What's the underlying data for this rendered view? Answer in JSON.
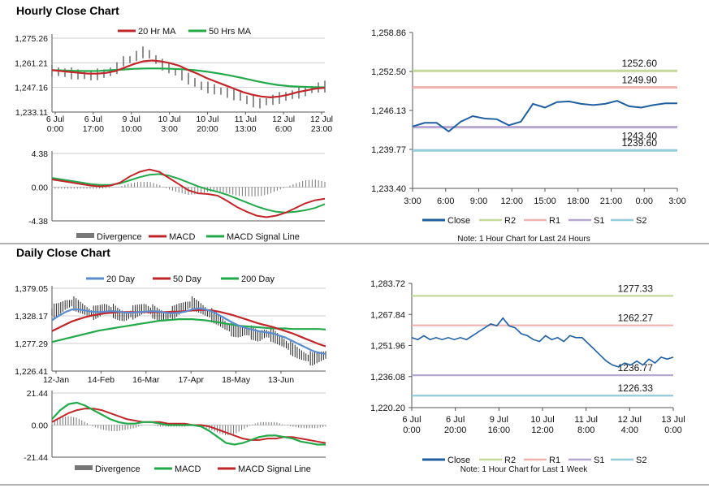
{
  "sections": {
    "hourly_title": "Hourly Close Chart",
    "daily_title": "Daily Close Chart"
  },
  "colors": {
    "close": "#1f5fa0",
    "ma20": "#c0262a",
    "ma50": "#23a84a",
    "day20": "#5b8ccf",
    "day50": "#c0262a",
    "day200": "#23a84a",
    "r2": "#c5d99a",
    "r1": "#efb3b0",
    "s1": "#b6a7d0",
    "s2": "#93cdd9",
    "divergence": "#777777",
    "price_bars": "#222222"
  },
  "chart_data": [
    {
      "id": "hourly_price",
      "type": "line",
      "title": "Hourly Close Chart",
      "legend": [
        "20 Hr MA",
        "50 Hrs MA"
      ],
      "yticks": [
        "1,275.26",
        "1,261.21",
        "1,247.16",
        "1,233.11"
      ],
      "ylim": [
        1233.11,
        1275.26
      ],
      "xticks": [
        [
          "6 Jul",
          "0:00"
        ],
        [
          "6 Jul",
          "17:00"
        ],
        [
          "9 Jul",
          "10:00"
        ],
        [
          "10 Jul",
          "3:00"
        ],
        [
          "10 Jul",
          "20:00"
        ],
        [
          "11 Jul",
          "13:00"
        ],
        [
          "12 Jul",
          "6:00"
        ],
        [
          "12 Jul",
          "23:00"
        ]
      ],
      "series": [
        {
          "name": "Close",
          "values": [
            1256.5,
            1256,
            1255.5,
            1255,
            1254.5,
            1254,
            1254,
            1254.5,
            1255,
            1256,
            1258,
            1262,
            1263,
            1265,
            1267,
            1266,
            1263,
            1260,
            1258,
            1256,
            1254,
            1252,
            1250,
            1248,
            1247,
            1246,
            1245,
            1244,
            1243,
            1242,
            1240,
            1239,
            1238,
            1239,
            1240,
            1241,
            1242,
            1243,
            1244,
            1245,
            1246,
            1247,
            1247.5
          ]
        },
        {
          "name": "20 Hr MA",
          "values": [
            1257,
            1256.5,
            1256,
            1255.5,
            1255,
            1255,
            1255.5,
            1256.5,
            1258.5,
            1260.5,
            1262,
            1262.5,
            1262,
            1261,
            1259.5,
            1257,
            1255,
            1252.5,
            1250.5,
            1248.5,
            1246.5,
            1244.5,
            1243,
            1242,
            1241.5,
            1242,
            1243,
            1244.5,
            1245.5,
            1246.5,
            1247
          ]
        },
        {
          "name": "50 Hrs MA",
          "values": [
            1257,
            1256.8,
            1256.6,
            1256.5,
            1256.6,
            1257,
            1257.4,
            1257.8,
            1258,
            1258,
            1257.8,
            1257.5,
            1257,
            1256.2,
            1255.2,
            1254,
            1252.6,
            1251.1,
            1249.7,
            1248.6,
            1247.9,
            1247.5,
            1247.3,
            1247.2
          ]
        }
      ]
    },
    {
      "id": "hourly_macd",
      "type": "line",
      "yticks": [
        "4.38",
        "0.00",
        "-4.38"
      ],
      "ylim": [
        -4.38,
        4.38
      ],
      "legend": [
        "Divergence",
        "MACD",
        "MACD Signal Line"
      ],
      "series": [
        {
          "name": "MACD",
          "values": [
            1.0,
            0.8,
            0.6,
            0.4,
            0.2,
            0.1,
            0.2,
            0.6,
            1.4,
            2.0,
            2.3,
            2.0,
            1.2,
            0.4,
            -0.4,
            -0.8,
            -0.9,
            -1.1,
            -1.8,
            -2.6,
            -3.2,
            -3.7,
            -3.9,
            -3.7,
            -3.3,
            -2.7,
            -2.1,
            -1.7,
            -1.5
          ]
        },
        {
          "name": "MACD Signal Line",
          "values": [
            1.2,
            1.0,
            0.8,
            0.6,
            0.4,
            0.3,
            0.3,
            0.5,
            0.9,
            1.3,
            1.6,
            1.7,
            1.5,
            1.1,
            0.6,
            0.1,
            -0.3,
            -0.6,
            -1.0,
            -1.5,
            -2.0,
            -2.5,
            -2.9,
            -3.2,
            -3.3,
            -3.2,
            -3.0,
            -2.7,
            -2.2
          ]
        },
        {
          "name": "Divergence",
          "values": [
            -0.2,
            -0.2,
            -0.2,
            -0.2,
            -0.2,
            -0.2,
            -0.1,
            0.1,
            0.5,
            0.7,
            0.7,
            0.3,
            -0.3,
            -0.7,
            -1.0,
            -0.9,
            -0.6,
            -0.5,
            -0.8,
            -1.1,
            -1.2,
            -1.2,
            -1.0,
            -0.5,
            0.0,
            0.5,
            0.9,
            1.0,
            0.7
          ]
        }
      ]
    },
    {
      "id": "hourly_levels",
      "type": "line",
      "yticks": [
        "1,258.86",
        "1,252.50",
        "1,246.13",
        "1,239.77",
        "1,233.40"
      ],
      "ylim": [
        1233.4,
        1258.86
      ],
      "xticks": [
        "3:00",
        "6:00",
        "9:00",
        "12:00",
        "15:00",
        "18:00",
        "21:00",
        "0:00",
        "3:00"
      ],
      "levels": [
        {
          "name": "R2",
          "value": 1252.6,
          "label": "1252.60"
        },
        {
          "name": "R1",
          "value": 1249.9,
          "label": "1249.90"
        },
        {
          "name": "S1",
          "value": 1243.4,
          "label": "1243.40"
        },
        {
          "name": "S2",
          "value": 1239.6,
          "label": "1239.60"
        }
      ],
      "series": [
        {
          "name": "Close",
          "values": [
            1243.5,
            1244.1,
            1244.1,
            1242.7,
            1244.3,
            1245.2,
            1244.8,
            1244.7,
            1243.7,
            1244.3,
            1247.2,
            1246.6,
            1247.5,
            1247.6,
            1247.2,
            1247.0,
            1247.2,
            1247.7,
            1246.8,
            1246.6,
            1247.0,
            1247.3,
            1247.3
          ]
        }
      ],
      "legend": [
        "Close",
        "R2",
        "R1",
        "S1",
        "S2"
      ],
      "note": "Note: 1 Hour Chart for Last 24 Hours"
    },
    {
      "id": "daily_price",
      "type": "line",
      "title": "Daily Close Chart",
      "legend": [
        "20 Day",
        "50 Day",
        "200 Day"
      ],
      "yticks": [
        "1,379.05",
        "1,328.17",
        "1,277.29",
        "1,226.41"
      ],
      "ylim": [
        1226.41,
        1379.05
      ],
      "xticks": [
        "12-Jan",
        "14-Feb",
        "16-Mar",
        "17-Apr",
        "18-May",
        "13-Jun"
      ],
      "series": [
        {
          "name": "Close",
          "values": [
            1335,
            1340,
            1348,
            1352,
            1345,
            1338,
            1332,
            1336,
            1342,
            1338,
            1330,
            1326,
            1333,
            1338,
            1342,
            1336,
            1330,
            1326,
            1332,
            1340,
            1346,
            1350,
            1344,
            1336,
            1328,
            1320,
            1310,
            1302,
            1298,
            1300,
            1296,
            1290,
            1296,
            1292,
            1284,
            1276,
            1266,
            1258,
            1252,
            1248,
            1252,
            1256
          ]
        },
        {
          "name": "20 Day",
          "values": [
            1320,
            1328,
            1335,
            1340,
            1340,
            1338,
            1336,
            1335,
            1336,
            1337,
            1336,
            1334,
            1334,
            1335,
            1336,
            1337,
            1336,
            1334,
            1333,
            1334,
            1336,
            1340,
            1342,
            1340,
            1336,
            1330,
            1323,
            1316,
            1310,
            1306,
            1303,
            1300,
            1298,
            1296,
            1292,
            1288,
            1282,
            1276,
            1270,
            1264,
            1260,
            1258
          ]
        },
        {
          "name": "50 Day",
          "values": [
            1300,
            1306,
            1312,
            1318,
            1322,
            1326,
            1329,
            1331,
            1333,
            1334,
            1335,
            1335,
            1335,
            1335,
            1335,
            1335,
            1335,
            1335,
            1336,
            1336,
            1337,
            1338,
            1339,
            1339,
            1338,
            1336,
            1333,
            1330,
            1326,
            1322,
            1318,
            1314,
            1311,
            1308,
            1304,
            1300,
            1296,
            1291,
            1286,
            1281,
            1276,
            1272
          ]
        },
        {
          "name": "200 Day",
          "values": [
            1280,
            1283,
            1286,
            1289,
            1292,
            1295,
            1298,
            1301,
            1303,
            1305,
            1307,
            1309,
            1311,
            1313,
            1315,
            1317,
            1319,
            1320,
            1321,
            1322,
            1322,
            1322,
            1321,
            1320,
            1318,
            1316,
            1314,
            1312,
            1310,
            1309,
            1308,
            1307,
            1306,
            1305,
            1305,
            1305,
            1304,
            1304,
            1304,
            1304,
            1304,
            1303
          ]
        }
      ]
    },
    {
      "id": "daily_macd",
      "type": "line",
      "yticks": [
        "21.44",
        "0.00",
        "-21.44"
      ],
      "ylim": [
        -21.44,
        21.44
      ],
      "legend": [
        "Divergence",
        "MACD",
        "MACD Signal Line"
      ],
      "series": [
        {
          "name": "MACD",
          "values": [
            4,
            10,
            14,
            15,
            13,
            10,
            7,
            4,
            2,
            1,
            1,
            2,
            2,
            1,
            0,
            0,
            0,
            0,
            -1,
            -4,
            -8,
            -12,
            -13,
            -12,
            -10,
            -8,
            -7,
            -7,
            -8,
            -9,
            -11,
            -12,
            -13,
            -13
          ]
        },
        {
          "name": "MACD Signal Line",
          "values": [
            2,
            5,
            8,
            10,
            11,
            11,
            10,
            8,
            6,
            4,
            3,
            2,
            2,
            2,
            1,
            1,
            1,
            0,
            0,
            -1,
            -3,
            -5,
            -7,
            -9,
            -10,
            -10,
            -9,
            -9,
            -8,
            -8,
            -9,
            -10,
            -11,
            -12
          ]
        },
        {
          "name": "Divergence",
          "values": [
            2,
            5,
            6,
            5,
            2,
            -1,
            -3,
            -4,
            -4,
            -3,
            -2,
            0,
            0,
            -1,
            -1,
            -1,
            -1,
            0,
            -1,
            -3,
            -5,
            -7,
            -6,
            -3,
            0,
            2,
            2,
            2,
            0,
            -1,
            -2,
            -2,
            -2,
            -1
          ]
        }
      ]
    },
    {
      "id": "daily_levels",
      "type": "line",
      "yticks": [
        "1,283.72",
        "1,267.84",
        "1,251.96",
        "1,236.08",
        "1,220.20"
      ],
      "ylim": [
        1220.2,
        1283.72
      ],
      "xticks": [
        [
          "6 Jul",
          "0:00"
        ],
        [
          "6 Jul",
          "20:00"
        ],
        [
          "9 Jul",
          "16:00"
        ],
        [
          "10 Jul",
          "12:00"
        ],
        [
          "11 Jul",
          "8:00"
        ],
        [
          "12 Jul",
          "4:00"
        ],
        [
          "13 Jul",
          "0:00"
        ]
      ],
      "levels": [
        {
          "name": "R2",
          "value": 1277.33,
          "label": "1277.33"
        },
        {
          "name": "R1",
          "value": 1262.27,
          "label": "1262.27"
        },
        {
          "name": "S1",
          "value": 1236.77,
          "label": "1236.77"
        },
        {
          "name": "S2",
          "value": 1226.33,
          "label": "1226.33"
        }
      ],
      "series": [
        {
          "name": "Close",
          "values": [
            1256,
            1255,
            1257,
            1255,
            1256,
            1255,
            1256,
            1255,
            1256,
            1255,
            1257,
            1259,
            1261,
            1263,
            1262,
            1266,
            1262,
            1261,
            1258,
            1257,
            1255,
            1254,
            1257,
            1255,
            1256,
            1254,
            1257,
            1256,
            1256,
            1253,
            1250,
            1247,
            1244,
            1242,
            1241,
            1243,
            1242,
            1244,
            1242,
            1245,
            1243,
            1246,
            1245,
            1246
          ]
        }
      ],
      "legend": [
        "Close",
        "R2",
        "R1",
        "S1",
        "S2"
      ],
      "note": "Note: 1 Hour Chart for Last 1 Week"
    }
  ]
}
